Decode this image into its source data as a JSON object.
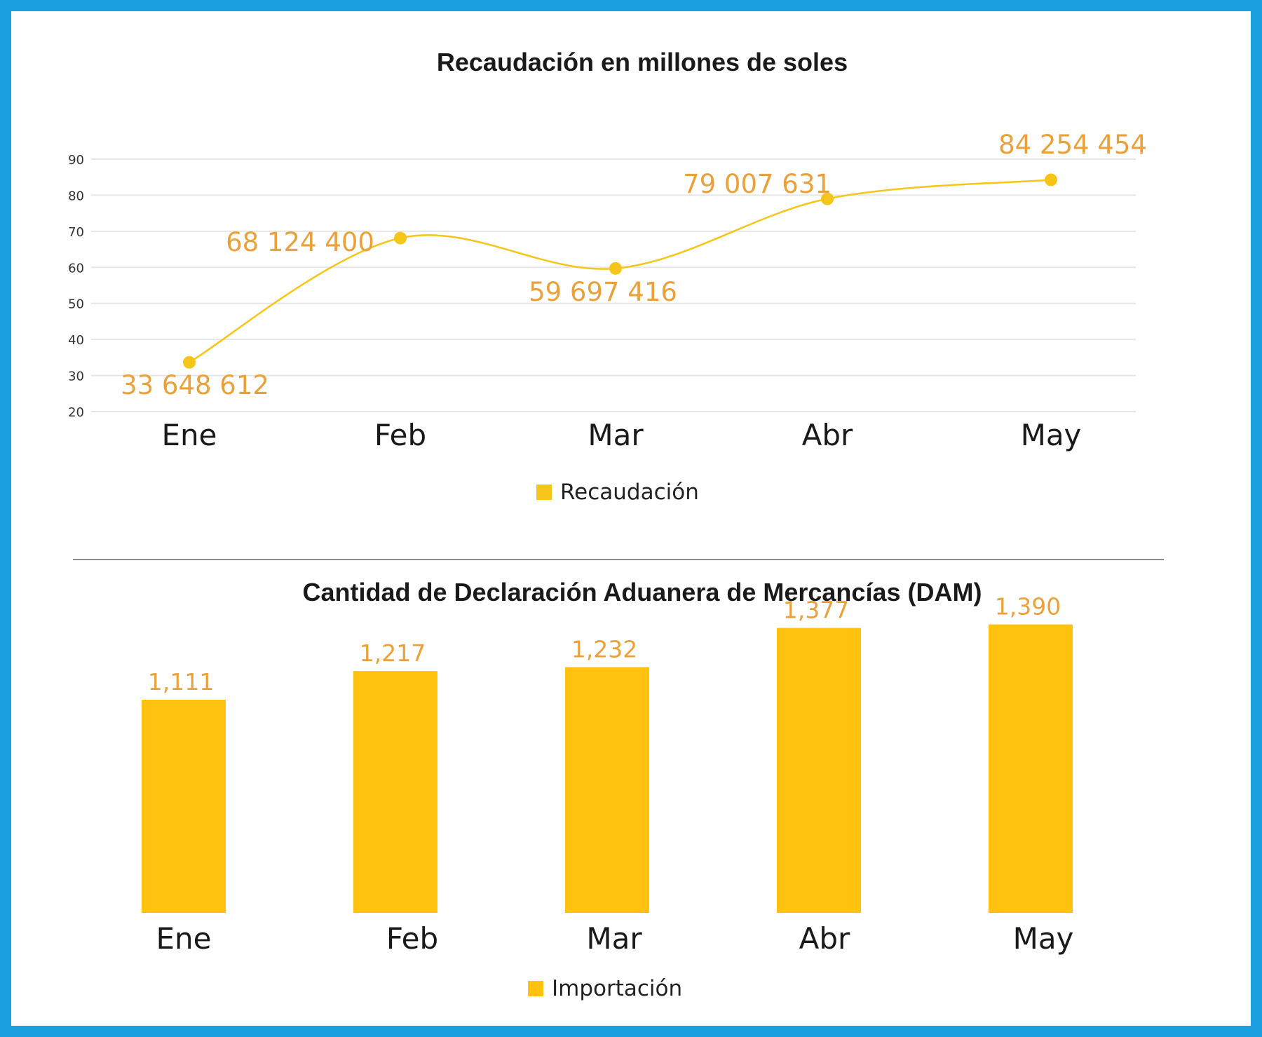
{
  "colors": {
    "frame": "#1aa0e0",
    "line": "#f5c518",
    "label": "#e9a23b",
    "bar": "#ffc20e",
    "grid": "#e6e6e6"
  },
  "chart_data": [
    {
      "type": "line",
      "title": "Recaudación en millones de soles",
      "categories": [
        "Ene",
        "Feb",
        "Mar",
        "Abr",
        "May"
      ],
      "values": [
        33.648612,
        68.1244,
        59.697416,
        79.007631,
        84.254454
      ],
      "data_labels": [
        "33 648 612",
        "68 124 400",
        "59 697 416",
        "79 007 631",
        "84 254 454"
      ],
      "y_ticks": [
        "20",
        "30",
        "40",
        "50",
        "60",
        "70",
        "80",
        "90"
      ],
      "ylim": [
        20,
        90
      ],
      "grid": true,
      "legend": "Recaudación",
      "legend_position": "bottom-center"
    },
    {
      "type": "bar",
      "title": "Cantidad de Declaración Aduanera de Mercancías (DAM)",
      "categories": [
        "Ene",
        "Feb",
        "Mar",
        "Abr",
        "May"
      ],
      "values": [
        1111,
        1217,
        1232,
        1377,
        1390
      ],
      "data_labels": [
        "1,111",
        "1,217",
        "1,232",
        "1,377",
        "1,390"
      ],
      "grid": false,
      "legend": "Importación",
      "legend_position": "bottom-center"
    }
  ]
}
